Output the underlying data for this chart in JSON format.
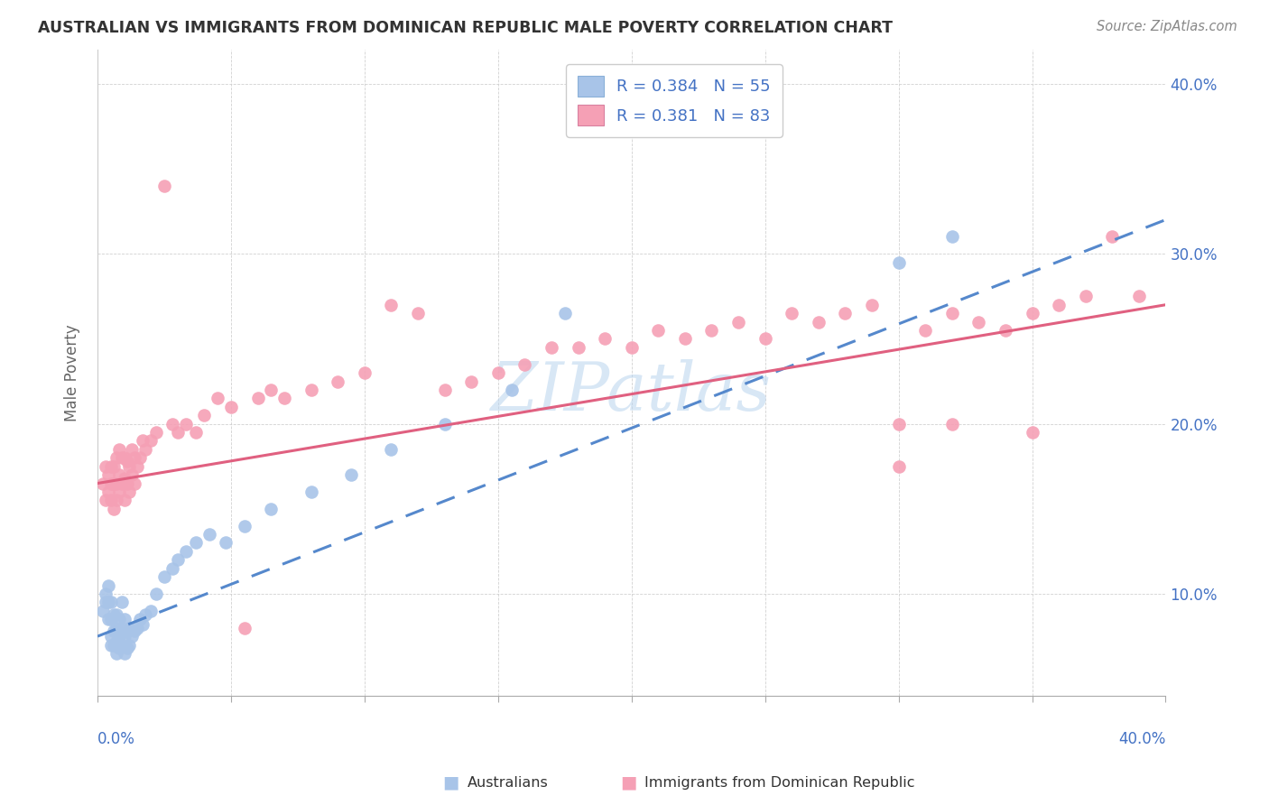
{
  "title": "AUSTRALIAN VS IMMIGRANTS FROM DOMINICAN REPUBLIC MALE POVERTY CORRELATION CHART",
  "source": "Source: ZipAtlas.com",
  "ylabel": "Male Poverty",
  "xlim": [
    0.0,
    0.4
  ],
  "ylim": [
    0.04,
    0.42
  ],
  "right_ytick_vals": [
    0.1,
    0.2,
    0.3,
    0.4
  ],
  "right_ytick_labels": [
    "10.0%",
    "20.0%",
    "30.0%",
    "40.0%"
  ],
  "legend_r1": "R = 0.384   N = 55",
  "legend_r2": "R = 0.381   N = 83",
  "blue_color": "#a8c4e8",
  "pink_color": "#f5a0b5",
  "blue_line_color": "#5588cc",
  "pink_line_color": "#e06080",
  "watermark": "ZIPatlas",
  "aus_x": [
    0.002,
    0.003,
    0.003,
    0.004,
    0.004,
    0.004,
    0.005,
    0.005,
    0.005,
    0.005,
    0.006,
    0.006,
    0.006,
    0.007,
    0.007,
    0.007,
    0.007,
    0.008,
    0.008,
    0.008,
    0.009,
    0.009,
    0.009,
    0.01,
    0.01,
    0.01,
    0.011,
    0.011,
    0.012,
    0.012,
    0.013,
    0.014,
    0.015,
    0.016,
    0.017,
    0.018,
    0.02,
    0.022,
    0.025,
    0.028,
    0.03,
    0.033,
    0.037,
    0.042,
    0.048,
    0.055,
    0.065,
    0.08,
    0.095,
    0.11,
    0.13,
    0.155,
    0.175,
    0.3,
    0.32
  ],
  "aus_y": [
    0.09,
    0.095,
    0.1,
    0.085,
    0.095,
    0.105,
    0.07,
    0.075,
    0.085,
    0.095,
    0.07,
    0.078,
    0.088,
    0.065,
    0.072,
    0.08,
    0.088,
    0.068,
    0.075,
    0.085,
    0.07,
    0.078,
    0.095,
    0.065,
    0.075,
    0.085,
    0.068,
    0.078,
    0.07,
    0.08,
    0.075,
    0.078,
    0.08,
    0.085,
    0.082,
    0.088,
    0.09,
    0.1,
    0.11,
    0.115,
    0.12,
    0.125,
    0.13,
    0.135,
    0.13,
    0.14,
    0.15,
    0.16,
    0.17,
    0.185,
    0.2,
    0.22,
    0.265,
    0.295,
    0.31
  ],
  "dom_x": [
    0.002,
    0.003,
    0.003,
    0.004,
    0.004,
    0.005,
    0.005,
    0.005,
    0.006,
    0.006,
    0.006,
    0.007,
    0.007,
    0.007,
    0.008,
    0.008,
    0.008,
    0.009,
    0.009,
    0.01,
    0.01,
    0.01,
    0.011,
    0.011,
    0.012,
    0.012,
    0.013,
    0.013,
    0.014,
    0.014,
    0.015,
    0.016,
    0.017,
    0.018,
    0.02,
    0.022,
    0.025,
    0.028,
    0.03,
    0.033,
    0.037,
    0.04,
    0.045,
    0.05,
    0.055,
    0.06,
    0.065,
    0.07,
    0.08,
    0.09,
    0.1,
    0.11,
    0.12,
    0.13,
    0.14,
    0.15,
    0.16,
    0.17,
    0.18,
    0.19,
    0.2,
    0.21,
    0.22,
    0.23,
    0.24,
    0.25,
    0.26,
    0.27,
    0.28,
    0.29,
    0.3,
    0.31,
    0.32,
    0.33,
    0.34,
    0.35,
    0.36,
    0.37,
    0.38,
    0.39,
    0.3,
    0.32,
    0.35
  ],
  "dom_y": [
    0.165,
    0.155,
    0.175,
    0.16,
    0.17,
    0.155,
    0.165,
    0.175,
    0.15,
    0.165,
    0.175,
    0.155,
    0.165,
    0.18,
    0.16,
    0.17,
    0.185,
    0.165,
    0.18,
    0.155,
    0.168,
    0.18,
    0.165,
    0.178,
    0.16,
    0.175,
    0.17,
    0.185,
    0.165,
    0.18,
    0.175,
    0.18,
    0.19,
    0.185,
    0.19,
    0.195,
    0.34,
    0.2,
    0.195,
    0.2,
    0.195,
    0.205,
    0.215,
    0.21,
    0.08,
    0.215,
    0.22,
    0.215,
    0.22,
    0.225,
    0.23,
    0.27,
    0.265,
    0.22,
    0.225,
    0.23,
    0.235,
    0.245,
    0.245,
    0.25,
    0.245,
    0.255,
    0.25,
    0.255,
    0.26,
    0.25,
    0.265,
    0.26,
    0.265,
    0.27,
    0.2,
    0.255,
    0.265,
    0.26,
    0.255,
    0.265,
    0.27,
    0.275,
    0.31,
    0.275,
    0.175,
    0.2,
    0.195
  ]
}
